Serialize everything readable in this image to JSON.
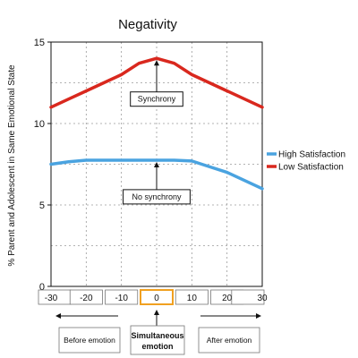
{
  "chart_data": {
    "type": "line",
    "title": "Negativity",
    "xlabel": "",
    "ylabel": "% Parent and Adolescent in Same Emotional State",
    "xlim": [
      -30,
      30
    ],
    "ylim": [
      0,
      15
    ],
    "x_ticks": [
      -30,
      -20,
      -10,
      0,
      10,
      20,
      30
    ],
    "y_ticks": [
      0,
      5,
      10,
      15
    ],
    "grid": true,
    "legend_position": "right",
    "series": [
      {
        "name": "High Satisfaction",
        "color": "#4aa3e0",
        "x": [
          -30,
          -25,
          -20,
          -15,
          -10,
          -5,
          0,
          5,
          10,
          15,
          20,
          25,
          30
        ],
        "y": [
          7.5,
          7.65,
          7.75,
          7.75,
          7.75,
          7.75,
          7.75,
          7.75,
          7.7,
          7.35,
          7.0,
          6.5,
          6.0
        ]
      },
      {
        "name": "Low Satisfaction",
        "color": "#d9281e",
        "x": [
          -30,
          -25,
          -20,
          -15,
          -10,
          -5,
          0,
          5,
          10,
          15,
          20,
          25,
          30
        ],
        "y": [
          11.0,
          11.5,
          12.0,
          12.5,
          13.0,
          13.7,
          14.0,
          13.7,
          13.0,
          12.5,
          12.0,
          11.5,
          11.0
        ]
      }
    ],
    "annotations": [
      {
        "text": "Synchrony",
        "x": 0,
        "y": 14.0,
        "box_y": 11.5
      },
      {
        "text": "No synchrony",
        "x": 0,
        "y": 7.75,
        "box_y": 5.5
      }
    ],
    "highlight_tick": 0,
    "highlight_color": "#f0a020"
  },
  "phases": {
    "before": "Before emotion",
    "simultaneous_line1": "Simultaneous",
    "simultaneous_line2": "emotion",
    "after": "After emotion"
  }
}
